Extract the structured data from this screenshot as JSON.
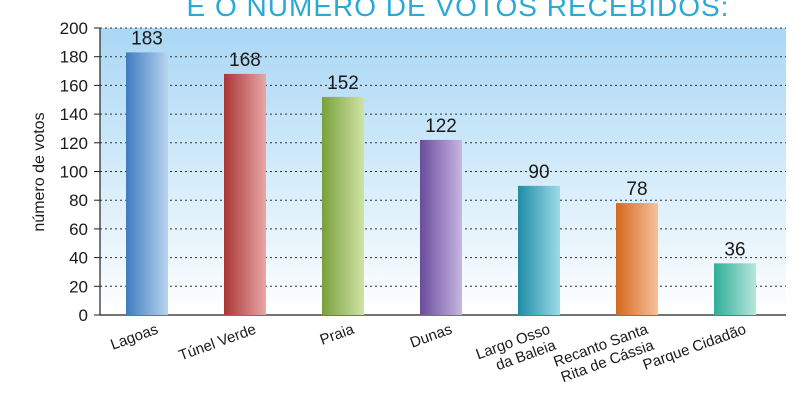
{
  "chart_data": {
    "type": "bar",
    "title": "E O NÚMERO DE VOTOS RECEBIDOS:",
    "ylabel": "número de votos",
    "xlabel": "",
    "ylim": [
      0,
      200
    ],
    "yticks": [
      0,
      20,
      40,
      60,
      80,
      100,
      120,
      140,
      160,
      180,
      200
    ],
    "grid": true,
    "categories": [
      [
        "Lagoas"
      ],
      [
        "Túnel Verde"
      ],
      [
        "Praia"
      ],
      [
        "Dunas"
      ],
      [
        "Largo Osso",
        "da Baleia"
      ],
      [
        "Recanto Santa",
        "Rita de Cássia"
      ],
      [
        "Parque Cidadão"
      ]
    ],
    "values": [
      183,
      168,
      152,
      122,
      90,
      78,
      36
    ],
    "colors": [
      [
        "#3f7cc0",
        "#b9d3ee"
      ],
      [
        "#a93636",
        "#eaa6a6"
      ],
      [
        "#79a03c",
        "#cfe3a4"
      ],
      [
        "#6a4c9c",
        "#c7b6e2"
      ],
      [
        "#1e8ca6",
        "#9ddbe9"
      ],
      [
        "#d4681e",
        "#f6c29a"
      ],
      [
        "#2fae98",
        "#b7e6dc"
      ]
    ],
    "background_gradient": [
      "#a9d7f5",
      "#ffffff"
    ]
  }
}
